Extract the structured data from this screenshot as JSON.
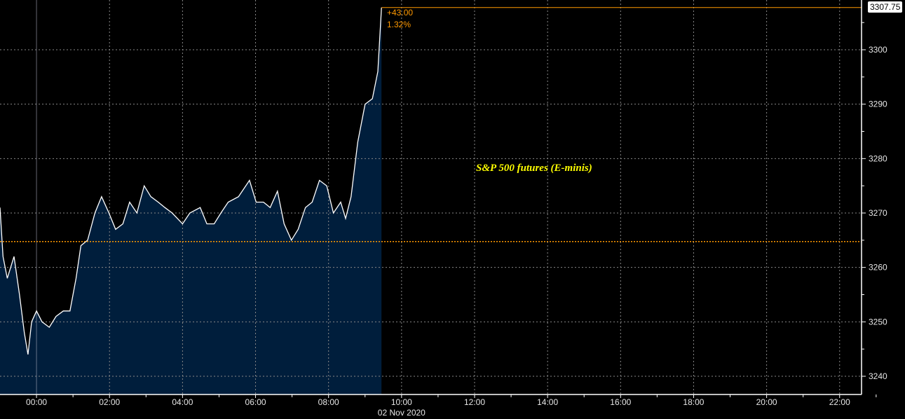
{
  "chart_data": {
    "type": "area",
    "title": "",
    "annotation": "S&P 500 futures (E-minis)",
    "date_label": "02 Nov 2020",
    "x_range": [
      "2020-11-01T23:00",
      "2020-11-02T22:36"
    ],
    "ylim": [
      3237,
      3310
    ],
    "y_ticks": [
      3240,
      3250,
      3260,
      3270,
      3280,
      3290,
      3300
    ],
    "x_ticks": [
      "00:00",
      "02:00",
      "04:00",
      "06:00",
      "08:00",
      "10:00",
      "12:00",
      "14:00",
      "16:00",
      "18:00",
      "20:00",
      "22:00"
    ],
    "grid": true,
    "reference_level": 3264.75,
    "last_price": "3307.75",
    "change": "+43.00",
    "change_pct": "1.32%",
    "colors": {
      "background": "#000000",
      "fill": "#001e3c",
      "line": "#ffffff",
      "reference": "#ff9900",
      "annotation": "#ffff00"
    },
    "points": [
      [
        "2020-11-01T23:00",
        3271
      ],
      [
        "2020-11-01T23:05",
        3262
      ],
      [
        "2020-11-01T23:12",
        3258
      ],
      [
        "2020-11-01T23:23",
        3262
      ],
      [
        "2020-11-01T23:32",
        3255
      ],
      [
        "2020-11-01T23:40",
        3248
      ],
      [
        "2020-11-01T23:46",
        3244
      ],
      [
        "2020-11-01T23:52",
        3250
      ],
      [
        "2020-11-02T00:00",
        3252
      ],
      [
        "2020-11-02T00:09",
        3250
      ],
      [
        "2020-11-02T00:21",
        3249
      ],
      [
        "2020-11-02T00:32",
        3251
      ],
      [
        "2020-11-02T00:44",
        3252
      ],
      [
        "2020-11-02T00:55",
        3252
      ],
      [
        "2020-11-02T01:05",
        3258
      ],
      [
        "2020-11-02T01:13",
        3264
      ],
      [
        "2020-11-02T01:24",
        3265
      ],
      [
        "2020-11-02T01:36",
        3270
      ],
      [
        "2020-11-02T01:47",
        3273
      ],
      [
        "2020-11-02T01:59",
        3270
      ],
      [
        "2020-11-02T02:10",
        3267
      ],
      [
        "2020-11-02T02:22",
        3268
      ],
      [
        "2020-11-02T02:33",
        3272
      ],
      [
        "2020-11-02T02:45",
        3270
      ],
      [
        "2020-11-02T02:57",
        3275
      ],
      [
        "2020-11-02T03:08",
        3273
      ],
      [
        "2020-11-02T03:20",
        3272
      ],
      [
        "2020-11-02T03:31",
        3271
      ],
      [
        "2020-11-02T03:43",
        3270
      ],
      [
        "2020-11-02T04:00",
        3268
      ],
      [
        "2020-11-02T04:12",
        3270
      ],
      [
        "2020-11-02T04:29",
        3271
      ],
      [
        "2020-11-02T04:40",
        3268
      ],
      [
        "2020-11-02T04:52",
        3268
      ],
      [
        "2020-11-02T05:03",
        3270
      ],
      [
        "2020-11-02T05:15",
        3272
      ],
      [
        "2020-11-02T05:32",
        3273
      ],
      [
        "2020-11-02T05:50",
        3276
      ],
      [
        "2020-11-02T06:01",
        3272
      ],
      [
        "2020-11-02T06:13",
        3272
      ],
      [
        "2020-11-02T06:24",
        3271
      ],
      [
        "2020-11-02T06:36",
        3274
      ],
      [
        "2020-11-02T06:47",
        3268
      ],
      [
        "2020-11-02T06:59",
        3265
      ],
      [
        "2020-11-02T07:10",
        3267
      ],
      [
        "2020-11-02T07:22",
        3271
      ],
      [
        "2020-11-02T07:33",
        3272
      ],
      [
        "2020-11-02T07:45",
        3276
      ],
      [
        "2020-11-02T07:57",
        3275
      ],
      [
        "2020-11-02T08:08",
        3270
      ],
      [
        "2020-11-02T08:20",
        3272
      ],
      [
        "2020-11-02T08:28",
        3269
      ],
      [
        "2020-11-02T08:37",
        3273
      ],
      [
        "2020-11-02T08:48",
        3283
      ],
      [
        "2020-11-02T09:00",
        3290
      ],
      [
        "2020-11-02T09:12",
        3291
      ],
      [
        "2020-11-02T09:21",
        3296
      ],
      [
        "2020-11-02T09:27",
        3307.75
      ]
    ]
  }
}
